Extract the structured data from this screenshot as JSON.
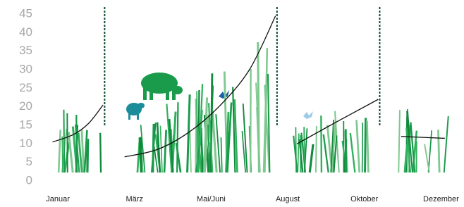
{
  "chart_data": {
    "type": "line",
    "xlim": [
      -0.7,
      5.3
    ],
    "ylim": [
      0,
      45
    ],
    "yticks": [
      0,
      5,
      10,
      15,
      20,
      25,
      30,
      35,
      40,
      45
    ],
    "xticks": [
      {
        "value": 0,
        "label": "Januar"
      },
      {
        "value": 1,
        "label": "März"
      },
      {
        "value": 2,
        "label": "Mai/Juni"
      },
      {
        "value": 3,
        "label": "August"
      },
      {
        "value": 4,
        "label": "Oktober"
      },
      {
        "value": 5,
        "label": "Dezember"
      }
    ],
    "mowing_x": [
      0.61,
      2.86,
      4.2
    ],
    "segments": [
      {
        "x": [
          -0.07,
          0.2,
          0.4,
          0.59
        ],
        "values": [
          10.5,
          12.5,
          15.5,
          20.5
        ]
      },
      {
        "x": [
          0.87,
          1.3,
          1.7,
          2.1,
          2.5,
          2.84
        ],
        "values": [
          6.5,
          8.5,
          13,
          20,
          30,
          44.5
        ]
      },
      {
        "x": [
          3.12,
          3.6,
          4.18
        ],
        "values": [
          10,
          15.5,
          22
        ]
      },
      {
        "x": [
          4.48,
          5.05
        ],
        "values": [
          12,
          11.5
        ]
      }
    ],
    "color": "#111111"
  }
}
